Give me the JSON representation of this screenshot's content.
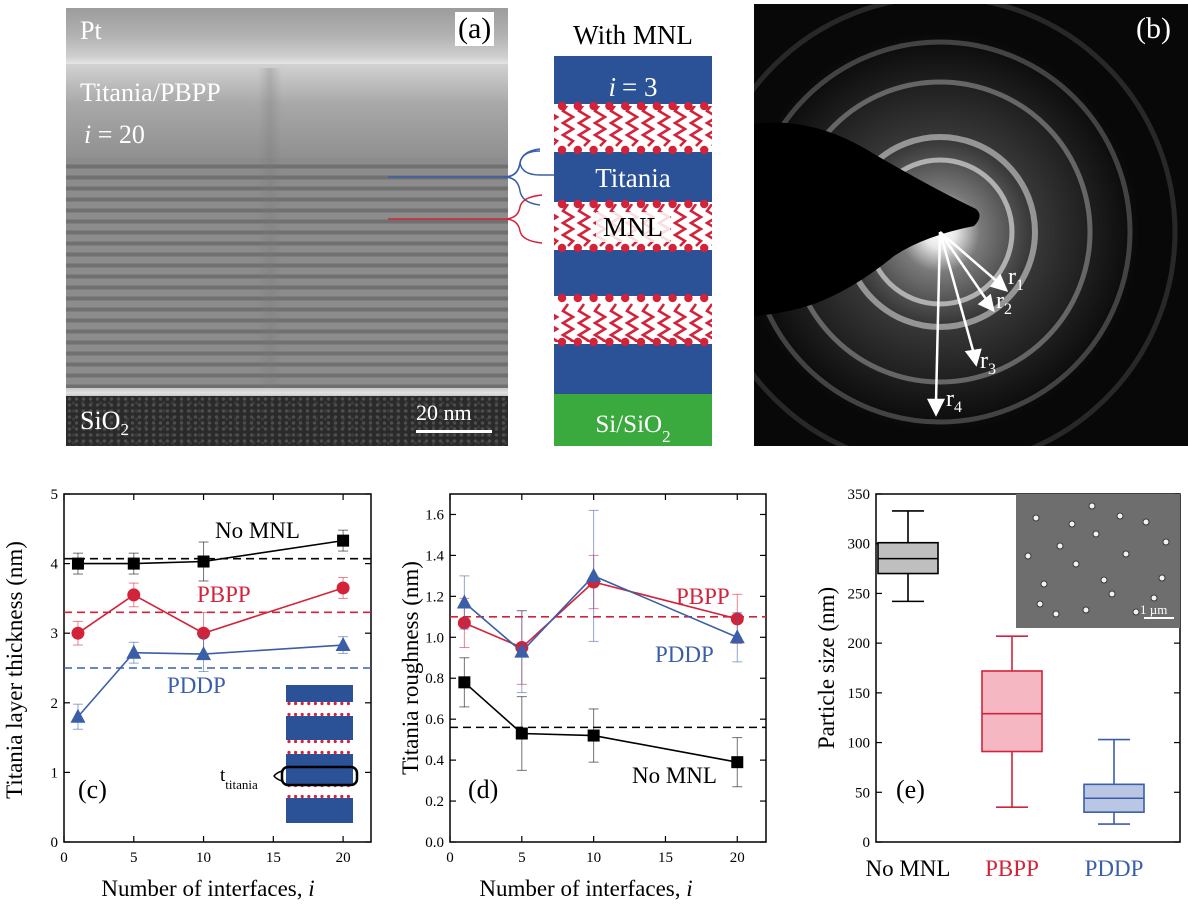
{
  "panel_a": {
    "letter": "(a)",
    "tem": {
      "pt_label": "Pt",
      "layer_label": "Titania/PBPP",
      "i_symbol": "i",
      "i_value": "= 20",
      "substrate_label": "SiO",
      "substrate_sub": "2",
      "scale_label": "20 nm"
    },
    "schematic": {
      "title": "With MNL",
      "i_symbol": "i",
      "i_value": "= 3",
      "titania_label": "Titania",
      "mnl_label": "MNL",
      "substrate_label": "Si/SiO",
      "substrate_sub": "2"
    }
  },
  "panel_b": {
    "letter": "(b)",
    "radii": [
      {
        "r": "r",
        "sub": "1"
      },
      {
        "r": "r",
        "sub": "2"
      },
      {
        "r": "r",
        "sub": "3"
      },
      {
        "r": "r",
        "sub": "4"
      }
    ]
  },
  "colors": {
    "black_series": "#000000",
    "pbpp": "#d3233a",
    "pddp": "#3b5ea8",
    "titania_blue": "#2b5196",
    "substrate_green": "#3aaa3e",
    "mnl_red": "#d3233a"
  },
  "chart_data": [
    {
      "type": "line",
      "panel": "(c)",
      "xlabel": "Number of interfaces, i",
      "xlabel_main": "Number of interfaces, ",
      "xlabel_italic": "i",
      "ylabel": "Titania layer thickness (nm)",
      "xlim": [
        0,
        22
      ],
      "ylim": [
        0,
        5
      ],
      "xticks": [
        0,
        5,
        10,
        15,
        20
      ],
      "yticks": [
        0,
        1,
        2,
        3,
        4,
        5
      ],
      "series": [
        {
          "name": "No MNL",
          "marker": "square",
          "x": [
            1,
            5,
            10,
            20
          ],
          "y": [
            4.0,
            4.0,
            4.03,
            4.33
          ],
          "err": [
            0.15,
            0.15,
            0.28,
            0.15
          ],
          "ref_line": 4.07
        },
        {
          "name": "PBPP",
          "marker": "circle",
          "x": [
            1,
            5,
            10,
            20
          ],
          "y": [
            3.0,
            3.55,
            3.0,
            3.65
          ],
          "err": [
            0.17,
            0.17,
            0.3,
            0.15
          ],
          "ref_line": 3.3
        },
        {
          "name": "PDDP",
          "marker": "triangle",
          "x": [
            1,
            5,
            10,
            20
          ],
          "y": [
            1.8,
            2.72,
            2.7,
            2.83
          ],
          "err": [
            0.18,
            0.15,
            0.25,
            0.12
          ],
          "ref_line": 2.5
        }
      ],
      "inset_label": "t",
      "inset_label_sub": "titania",
      "grid": false
    },
    {
      "type": "line",
      "panel": "(d)",
      "xlabel": "Number of interfaces, i",
      "xlabel_main": "Number of interfaces, ",
      "xlabel_italic": "i",
      "ylabel": "Titania roughness (nm)",
      "xlim": [
        0,
        22
      ],
      "ylim": [
        0,
        1.7
      ],
      "xticks": [
        0,
        5,
        10,
        15,
        20
      ],
      "yticks": [
        0.0,
        0.2,
        0.4,
        0.6,
        0.8,
        1.0,
        1.2,
        1.4,
        1.6
      ],
      "series": [
        {
          "name": "PBPP",
          "marker": "circle",
          "x": [
            1,
            5,
            10,
            20
          ],
          "y": [
            1.07,
            0.95,
            1.27,
            1.09
          ],
          "err": [
            0.12,
            0.18,
            0.13,
            0.12
          ]
        },
        {
          "name": "PDDP",
          "marker": "triangle",
          "x": [
            1,
            5,
            10,
            20
          ],
          "y": [
            1.17,
            0.93,
            1.3,
            1.0
          ],
          "err": [
            0.13,
            0.2,
            0.32,
            0.12
          ]
        },
        {
          "name": "No MNL",
          "marker": "square",
          "x": [
            1,
            5,
            10,
            20
          ],
          "y": [
            0.78,
            0.53,
            0.52,
            0.39
          ],
          "err": [
            0.12,
            0.18,
            0.13,
            0.12
          ]
        }
      ],
      "ref_lines": [
        {
          "series": "PBPP",
          "y": 1.1
        },
        {
          "series": "No MNL",
          "y": 0.56
        }
      ],
      "grid": false
    },
    {
      "type": "box",
      "panel": "(e)",
      "ylabel": "Particle size (nm)",
      "ylim": [
        0,
        350
      ],
      "yticks": [
        0,
        50,
        100,
        150,
        200,
        250,
        300,
        350
      ],
      "categories": [
        "No MNL",
        "PBPP",
        "PDDP"
      ],
      "boxes": [
        {
          "name": "No MNL",
          "min": 242,
          "q1": 270,
          "median": 285,
          "q3": 301,
          "max": 333
        },
        {
          "name": "PBPP",
          "min": 35,
          "q1": 91,
          "median": 129,
          "q3": 172,
          "max": 207
        },
        {
          "name": "PDDP",
          "min": 18,
          "q1": 30,
          "median": 44,
          "q3": 58,
          "max": 103
        }
      ],
      "inset_scale": "1 µm",
      "grid": false
    }
  ]
}
